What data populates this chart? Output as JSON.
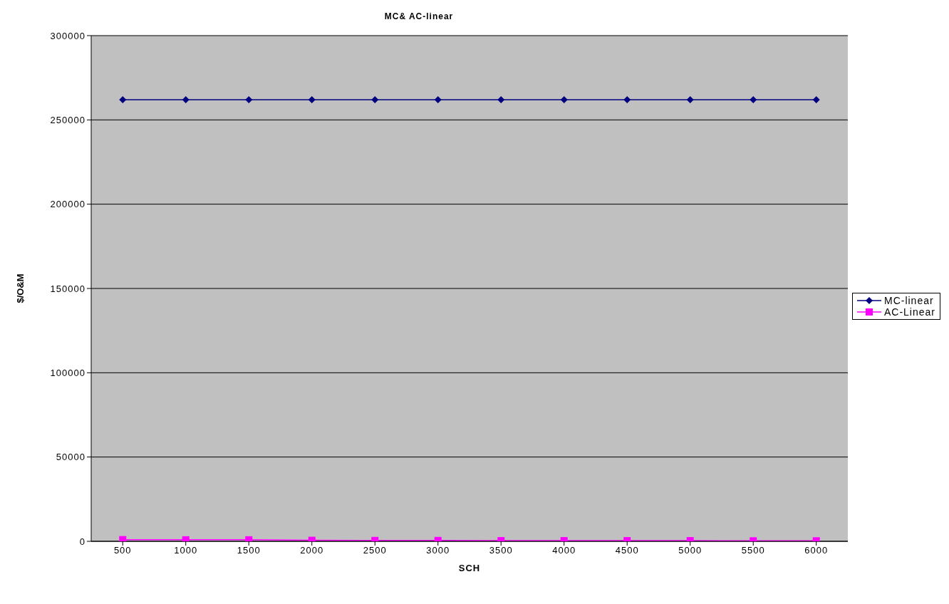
{
  "chart_data": {
    "type": "line",
    "title": "MC& AC-linear",
    "xlabel": "SCH",
    "ylabel": "$/O&M",
    "categories": [
      "500",
      "1000",
      "1500",
      "2000",
      "2500",
      "3000",
      "3500",
      "4000",
      "4500",
      "5000",
      "5500",
      "6000"
    ],
    "series": [
      {
        "name": "MC-linear",
        "color": "#000080",
        "marker": "diamond",
        "values": [
          262000,
          262000,
          262000,
          262000,
          262000,
          262000,
          262000,
          262000,
          262000,
          262000,
          262000,
          262000
        ]
      },
      {
        "name": "AC-Linear",
        "color": "#ff00ff",
        "marker": "square",
        "values": [
          1000,
          900,
          900,
          600,
          500,
          500,
          400,
          400,
          400,
          400,
          300,
          300
        ]
      }
    ],
    "ylim": [
      0,
      300000
    ],
    "yticks": [
      0,
      50000,
      100000,
      150000,
      200000,
      250000,
      300000
    ],
    "grid": "y",
    "legend": "right",
    "line_style": "solid"
  }
}
